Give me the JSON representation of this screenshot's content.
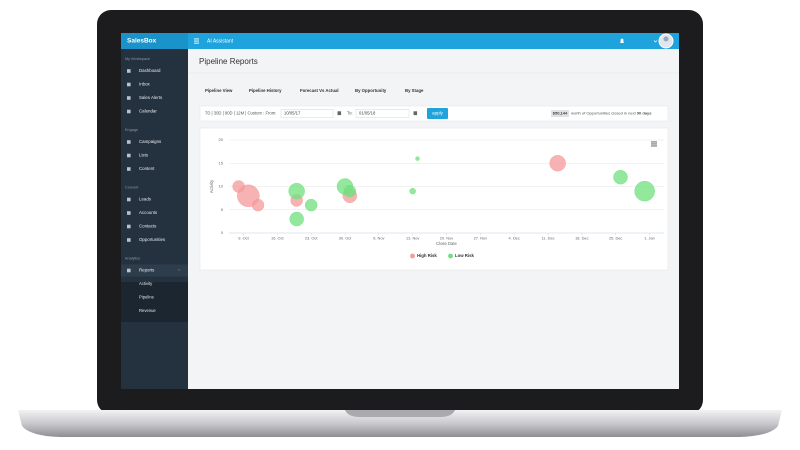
{
  "app": {
    "brand": "SalesBox",
    "topbar_title": "AI Assistant"
  },
  "sidebar": {
    "sections": [
      {
        "title": "My Workspace",
        "items": [
          "Dashboard",
          "Inbox",
          "Sales Alerts",
          "Calendar"
        ]
      },
      {
        "title": "Engage",
        "items": [
          "Campaigns",
          "Lists",
          "Content"
        ]
      },
      {
        "title": "Convert",
        "items": [
          "Leads",
          "Accounts",
          "Contacts",
          "Opportunities"
        ]
      },
      {
        "title": "Analytics",
        "items": [
          "Reports"
        ],
        "subitems": [
          "Activity",
          "Pipeline",
          "Revenue"
        ]
      }
    ]
  },
  "page": {
    "title": "Pipeline Reports",
    "tabs": [
      "Pipeline View",
      "Pipeline History",
      "Forecast Vs Actual",
      "By Opportunity",
      "By Stage"
    ],
    "filter": {
      "ranges": "7D | 30D | 90D | 12M | Custom : From:",
      "from": "10/05/17",
      "to_label": "To:",
      "to": "01/05/18",
      "button": "apply",
      "summary_value": "$50,144",
      "summary_text": "worth of Opportunities closed in next",
      "summary_days": "90 days"
    }
  },
  "chart_data": {
    "type": "scatter",
    "x_label": "Close Date",
    "y_label": "Activity",
    "xlim": [
      "2017-10-06",
      "2018-01-04"
    ],
    "xticks": [
      {
        "value": "2017-10-09",
        "label": "9. Oct"
      },
      {
        "value": "2017-10-16",
        "label": "16. Oct"
      },
      {
        "value": "2017-10-23",
        "label": "23. Oct"
      },
      {
        "value": "2017-10-30",
        "label": "30. Oct"
      },
      {
        "value": "2017-11-06",
        "label": "6. Nov"
      },
      {
        "value": "2017-11-13",
        "label": "13. Nov"
      },
      {
        "value": "2017-11-20",
        "label": "20. Nov"
      },
      {
        "value": "2017-11-27",
        "label": "27. Nov"
      },
      {
        "value": "2017-12-04",
        "label": "4. Dec"
      },
      {
        "value": "2017-12-11",
        "label": "11. Dec"
      },
      {
        "value": "2017-12-18",
        "label": "18. Dec"
      },
      {
        "value": "2017-12-25",
        "label": "25. Dec"
      },
      {
        "value": "2018-01-01",
        "label": "1. Jan"
      }
    ],
    "ylim": [
      0,
      20
    ],
    "yticks": [
      0,
      5,
      10,
      15,
      20
    ],
    "grid": true,
    "legend": "bottom",
    "series": [
      {
        "name": "High Risk",
        "color": "#f49a9a",
        "x": [
          "2017-10-08",
          "2017-10-10",
          "2017-10-12",
          "2017-10-20",
          "2017-10-31",
          "2017-12-13"
        ],
        "values": [
          10,
          8,
          6,
          7,
          8,
          15
        ],
        "sizes": [
          6,
          11,
          6,
          6,
          7,
          8
        ]
      },
      {
        "name": "Low Risk",
        "color": "#6fe07e",
        "x": [
          "2017-10-20",
          "2017-10-20",
          "2017-10-23",
          "2017-10-30",
          "2017-10-31",
          "2017-11-13",
          "2017-11-14",
          "2017-12-26",
          "2017-12-31"
        ],
        "values": [
          9,
          3,
          6,
          10,
          9,
          9,
          16,
          12,
          9
        ],
        "sizes": [
          8,
          7,
          6,
          8,
          6,
          3,
          2,
          7,
          10
        ]
      }
    ]
  }
}
